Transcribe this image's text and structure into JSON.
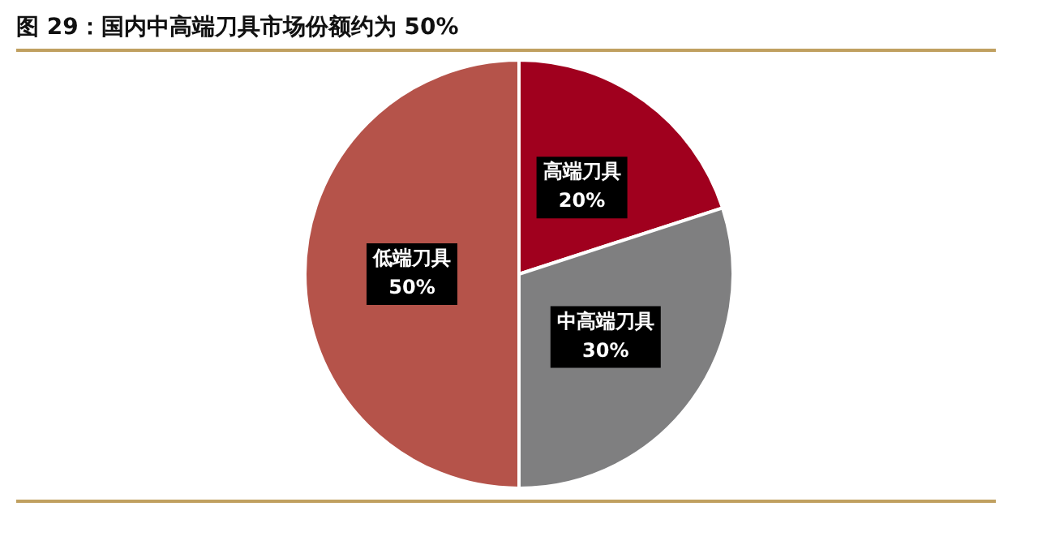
{
  "chart_data": {
    "type": "pie",
    "title": "图 29：国内中高端刀具市场份额约为 50%",
    "categories": [
      "高端刀具",
      "中高端刀具",
      "低端刀具"
    ],
    "values": [
      20,
      30,
      50
    ],
    "colors": [
      "#a0001e",
      "#7f7f80",
      "#b5534a"
    ],
    "value_labels": [
      "20%",
      "30%",
      "50%"
    ],
    "legend": false
  }
}
